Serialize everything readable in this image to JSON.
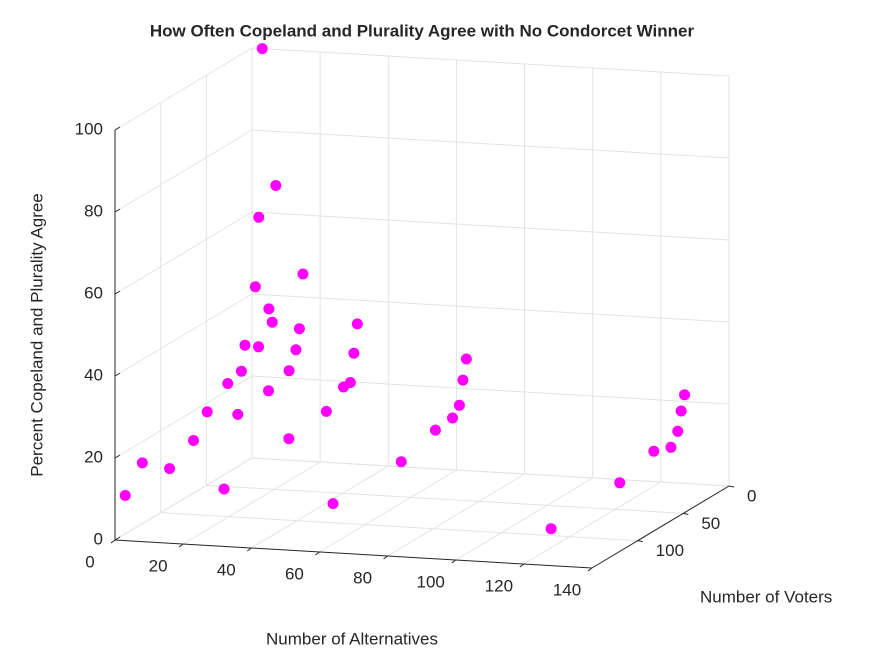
{
  "chart_data": {
    "type": "scatter3d",
    "title": "How Often Copeland and Plurality Agree with No Condorcet Winner",
    "xlabel": "Number of Alternatives",
    "ylabel": "Number of Voters",
    "zlabel": "Percent Copeland and Plurality Agree",
    "color": "#ff00ff",
    "x": [
      3,
      11,
      6,
      23,
      5,
      13,
      18,
      30,
      47,
      10,
      18,
      33,
      50,
      79,
      17,
      17,
      35,
      82,
      53,
      55,
      33,
      85,
      15,
      28,
      54,
      87,
      86,
      47,
      15,
      4,
      12,
      80,
      3,
      32,
      64,
      135,
      134,
      133,
      131,
      130,
      124,
      128
    ],
    "y": [
      0,
      15,
      15,
      30,
      15,
      30,
      45,
      60,
      60,
      45,
      60,
      75,
      75,
      60,
      75,
      90,
      90,
      75,
      90,
      105,
      105,
      90,
      105,
      120,
      120,
      105,
      120,
      135,
      120,
      135,
      135,
      135,
      150,
      150,
      150,
      30,
      30,
      30,
      30,
      45,
      60,
      150
    ],
    "z": [
      100,
      69,
      61,
      50,
      44,
      41,
      40,
      41,
      43,
      34,
      36,
      38,
      38,
      36,
      32,
      31,
      35,
      33,
      33,
      34,
      32,
      29,
      26,
      28,
      30,
      28,
      27,
      25,
      21,
      17,
      16,
      21,
      11,
      14,
      12,
      26,
      22,
      17,
      13,
      14,
      8,
      9
    ],
    "xlim": [
      0,
      140
    ],
    "ylim": [
      0,
      150
    ],
    "zlim": [
      0,
      100
    ],
    "xticks": [
      0,
      20,
      40,
      60,
      80,
      100,
      120,
      140
    ],
    "yticks": [
      0,
      50,
      100
    ],
    "zticks": [
      0,
      20,
      40,
      60,
      80,
      100
    ],
    "grid": true
  }
}
